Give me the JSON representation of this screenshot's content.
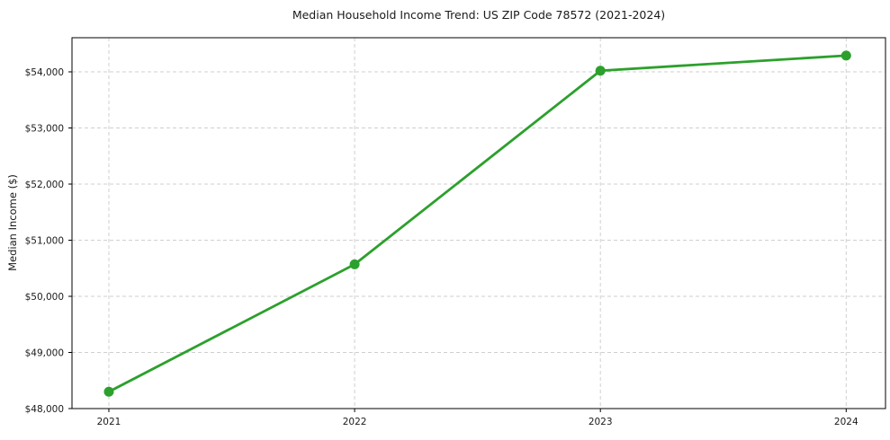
{
  "chart_data": {
    "type": "line",
    "title": "Median Household Income Trend: US ZIP Code 78572 (2021-2024)",
    "xlabel": "",
    "ylabel": "Median Income ($)",
    "x": [
      2021,
      2022,
      2023,
      2024
    ],
    "x_tick_labels": [
      "2021",
      "2022",
      "2023",
      "2024"
    ],
    "series": [
      {
        "name": "Median Household Income",
        "values": [
          48300,
          50570,
          54020,
          54290
        ],
        "color": "#2ca02c",
        "marker": "circle",
        "marker_radius": 5.5,
        "line_width": 2.8
      }
    ],
    "xlim": [
      2020.85,
      2024.16
    ],
    "ylim": [
      48000,
      54608
    ],
    "yticks": [
      48000,
      49000,
      50000,
      51000,
      52000,
      53000,
      54000
    ],
    "y_tick_labels": [
      "$48,000",
      "$49,000",
      "$50,000",
      "$51,000",
      "$52,000",
      "$53,000",
      "$54,000"
    ],
    "grid": "dashed-both-axes",
    "legend": "none"
  },
  "colors": {
    "line": "#2ca02c",
    "grid": "#cfcfcf",
    "axis": "#000000",
    "text": "#1a1a1a",
    "background": "#ffffff"
  }
}
